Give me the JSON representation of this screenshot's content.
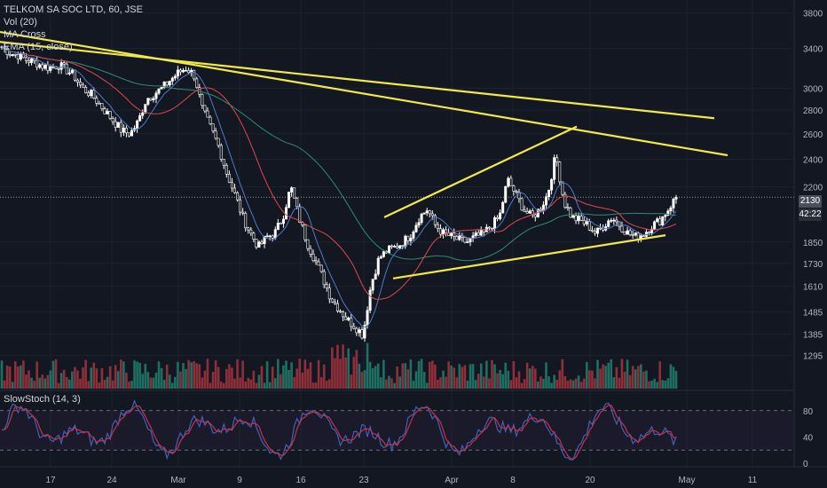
{
  "header": {
    "symbol_line": "TELKOM SA SOC LTD, 60, JSE",
    "indicators": [
      "Vol (20)",
      "MA Cross",
      "EMA (15, close)"
    ]
  },
  "oscillator": {
    "label": "SlowStoch (14, 3)",
    "levels": [
      80,
      40,
      0
    ],
    "ref_levels": [
      80,
      20
    ]
  },
  "price_tags": {
    "last_price": "2130",
    "countdown": "42:22"
  },
  "colors": {
    "background": "#131722",
    "grid": "#1e222d",
    "candle": "#ffffff",
    "trendline": "#f3e84b",
    "ma_red": "#e0474c",
    "ma_green": "#2e8c74",
    "ema_blue": "#4f7ac7",
    "vol_up": "#1f6f63",
    "vol_down": "#8e2f3a",
    "stoch_k": "#3c63b8",
    "stoch_d": "#c9304a",
    "price_tag": "#4a4f5c"
  },
  "chart_data": {
    "type": "candlestick",
    "x_ticks": [
      "17",
      "24",
      "Mar",
      "9",
      "16",
      "23",
      "Apr",
      "8",
      "20",
      "May",
      "11"
    ],
    "y_ticks": [
      3800,
      3400,
      3000,
      2800,
      2600,
      2400,
      2200,
      1850,
      1730,
      1610,
      1485,
      1385,
      1295
    ],
    "y_scale": "log",
    "ylim": [
      1200,
      3850
    ],
    "last_price": 2130,
    "price_path": [
      3420,
      3350,
      3330,
      3280,
      3260,
      3220,
      3200,
      3230,
      3180,
      3120,
      3000,
      2950,
      2870,
      2780,
      2700,
      2620,
      2600,
      2700,
      2900,
      2950,
      3000,
      3080,
      3150,
      3200,
      3120,
      2800,
      2650,
      2500,
      2300,
      2150,
      2000,
      1900,
      1820,
      1880,
      1900,
      2000,
      2200,
      2000,
      1850,
      1750,
      1650,
      1550,
      1500,
      1450,
      1420,
      1380,
      1620,
      1760,
      1800,
      1820,
      1850,
      1900,
      2000,
      2050,
      1950,
      1900,
      1880,
      1860,
      1850,
      1880,
      1900,
      1950,
      2000,
      2250,
      2150,
      2050,
      2000,
      2050,
      2150,
      2430,
      2100,
      2000,
      1980,
      1950,
      1900,
      1950,
      2000,
      1950,
      1900,
      1880,
      1900,
      1950,
      1980,
      2050,
      2130
    ],
    "trendlines": [
      {
        "from": [
          0,
          3580
        ],
        "to": [
          820,
          2430
        ]
      },
      {
        "from": [
          0,
          3470
        ],
        "to": [
          805,
          2730
        ]
      },
      {
        "from": [
          433,
          2000
        ],
        "to": [
          650,
          2660
        ]
      },
      {
        "from": [
          443,
          1650
        ],
        "to": [
          750,
          1890
        ]
      }
    ],
    "volume": {
      "axis": "none"
    },
    "stochastic": {
      "ylim": [
        0,
        100
      ],
      "levels": [
        80,
        40,
        0
      ]
    }
  }
}
